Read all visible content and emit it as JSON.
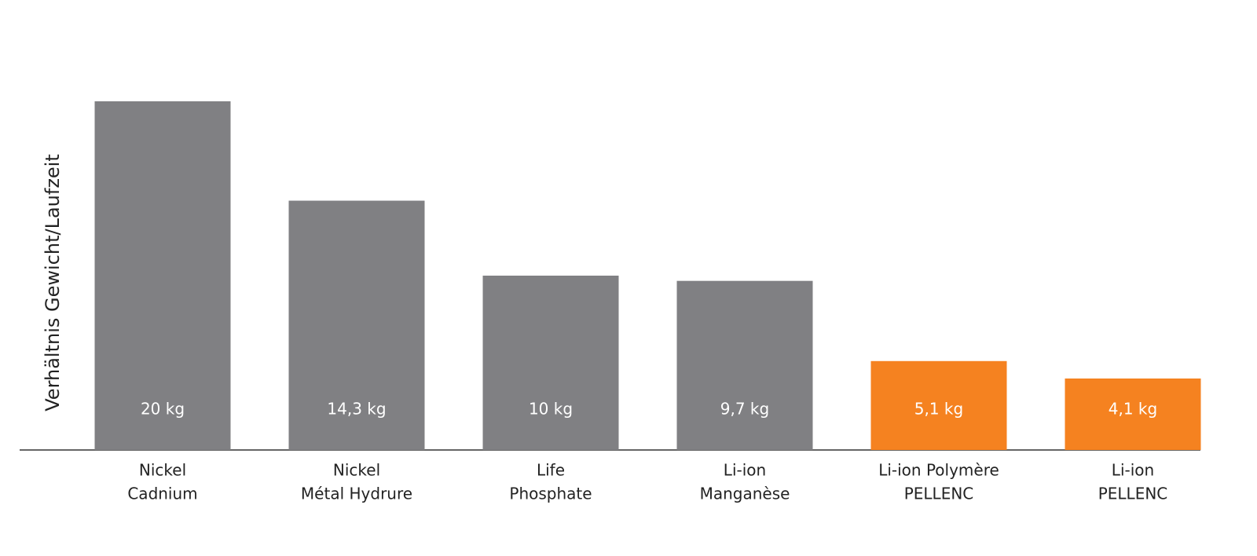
{
  "chart_data": {
    "type": "bar",
    "y_label": "Verhältnis Gewicht/Laufzeit",
    "categories": [
      [
        "Nickel",
        "Cadnium"
      ],
      [
        "Nickel",
        "Métal Hydrure"
      ],
      [
        "Life",
        "Phosphate"
      ],
      [
        "Li-ion",
        "Manganèse"
      ],
      [
        "Li-ion Polymère",
        "PELLENC"
      ],
      [
        "Li-ion",
        "PELLENC"
      ]
    ],
    "values": [
      20,
      14.3,
      10,
      9.7,
      5.1,
      4.1
    ],
    "value_labels": [
      "20 kg",
      "14,3 kg",
      "10 kg",
      "9,7 kg",
      "5,1 kg",
      "4,1 kg"
    ],
    "colors": [
      "#808083",
      "#808083",
      "#808083",
      "#808083",
      "#f58220",
      "#f58220"
    ],
    "ylim": [
      0,
      20
    ]
  }
}
